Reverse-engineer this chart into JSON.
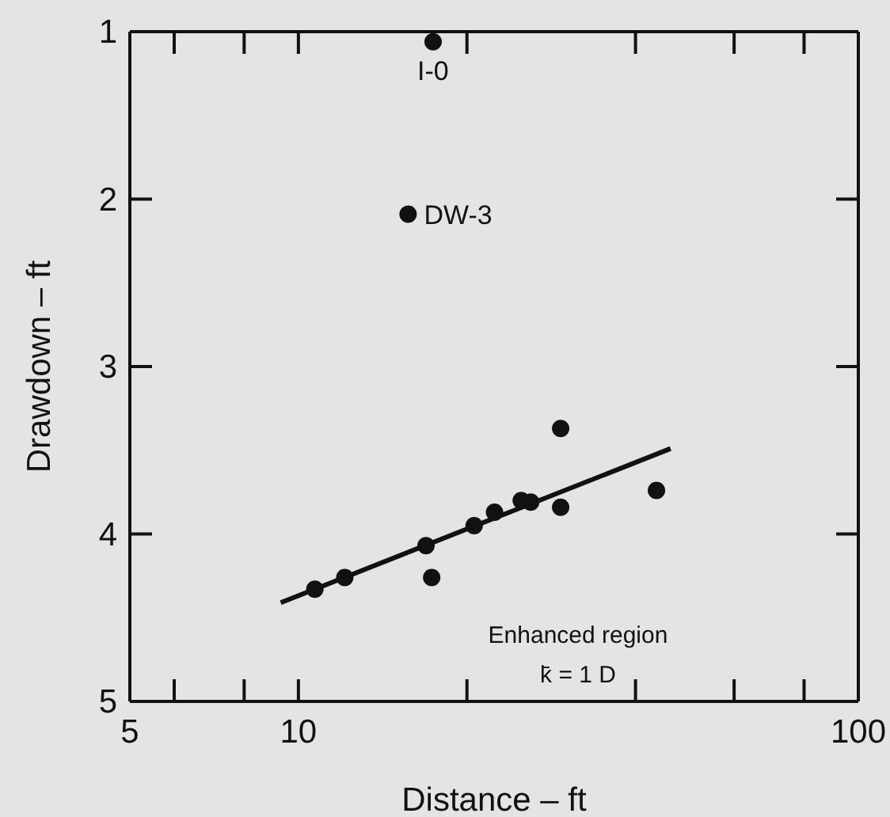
{
  "chart_data": {
    "type": "scatter",
    "xlabel": "Distance – ft",
    "ylabel": "Drawdown – ft",
    "log": "x",
    "xlim": [
      5,
      100
    ],
    "xticks": [
      5,
      {
        "value": 6,
        "label": null
      },
      {
        "value": 8,
        "label": null
      },
      10,
      {
        "value": 20,
        "label": null
      },
      {
        "value": 40,
        "label": null
      },
      {
        "value": 60,
        "label": null
      },
      {
        "value": 80,
        "label": null
      },
      100
    ],
    "ylim": [
      5,
      1
    ],
    "yticks": [
      1,
      2,
      3,
      4,
      5
    ],
    "marker": "circle",
    "series": [
      {
        "color": "#111111",
        "x": [
          17.4,
          15.7,
          10.7,
          12.1,
          16.9,
          17.3,
          20.6,
          22.4,
          25.0,
          26.0,
          29.4,
          29.4,
          43.6
        ],
        "values": [
          1.06,
          2.09,
          4.33,
          4.26,
          4.07,
          4.26,
          3.95,
          3.87,
          3.8,
          3.81,
          3.37,
          3.84,
          3.74
        ]
      },
      {
        "type": "line",
        "color": "#111111",
        "marker": "none",
        "line_style": "solid",
        "x": [
          9.3,
          46.2
        ],
        "values": [
          4.41,
          3.49
        ]
      }
    ],
    "annotations": [
      {
        "text": "I-0",
        "x": 17.4,
        "y": 1.06
      },
      {
        "text": "DW-3",
        "x": 15.7,
        "y": 2.09
      },
      "Enhanced region",
      "k̄ = 1 D"
    ]
  }
}
